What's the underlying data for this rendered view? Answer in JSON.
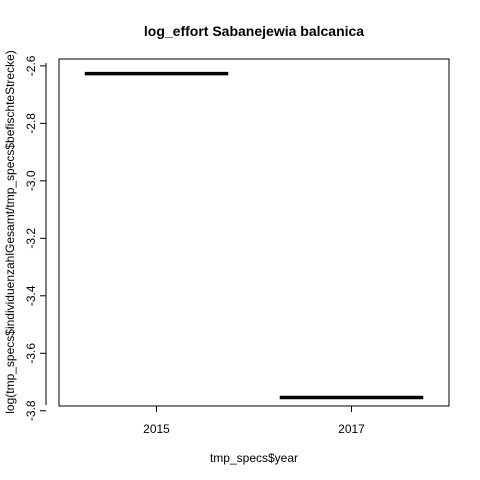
{
  "chart_data": {
    "type": "box",
    "title": "log_effort Sabanejewia balcanica",
    "xlabel": "tmp_specs$year",
    "ylabel": "log(tmp_specs$individuenzahlGesamt/tmp_specs$befischteStrecke)",
    "categories": [
      "2015",
      "2017"
    ],
    "values": [
      -2.627,
      -3.754
    ],
    "ylim": [
      -3.78,
      -2.59
    ],
    "yticks": [
      -2.6,
      -2.8,
      -3.0,
      -3.2,
      -3.4,
      -3.6,
      -3.8
    ],
    "ytick_labels": [
      "-2.6",
      "-2.8",
      "-3.0",
      "-3.2",
      "-3.4",
      "-3.6",
      "-3.8"
    ],
    "grid": false,
    "legend": "none",
    "line_color": "#000000"
  }
}
